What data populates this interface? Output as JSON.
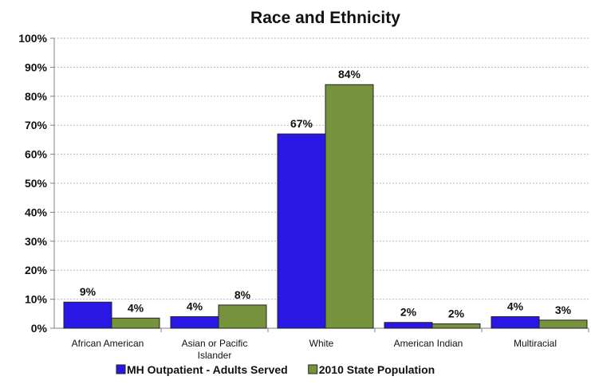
{
  "chart_data": {
    "type": "bar",
    "title": "Race and Ethnicity",
    "categories": [
      [
        "African American"
      ],
      [
        "Asian or Pacific",
        "Islander"
      ],
      [
        "White"
      ],
      [
        "American Indian"
      ],
      [
        "Multiracial"
      ]
    ],
    "series": [
      {
        "name": "MH Outpatient - Adults Served",
        "color": "#2a17e6",
        "values": [
          9,
          4,
          67,
          2,
          4
        ],
        "labels": [
          "9%",
          "4%",
          "67%",
          "2%",
          "4%"
        ]
      },
      {
        "name": "2010 State Population",
        "color": "#76923c",
        "values": [
          3.5,
          8,
          84,
          1.5,
          2.8
        ],
        "labels": [
          "4%",
          "8%",
          "84%",
          "2%",
          "3%"
        ]
      }
    ],
    "y_ticks": [
      "0%",
      "10%",
      "20%",
      "30%",
      "40%",
      "50%",
      "60%",
      "70%",
      "80%",
      "90%",
      "100%"
    ],
    "ylim": [
      0,
      100
    ],
    "grid": true,
    "legend_position": "bottom"
  }
}
